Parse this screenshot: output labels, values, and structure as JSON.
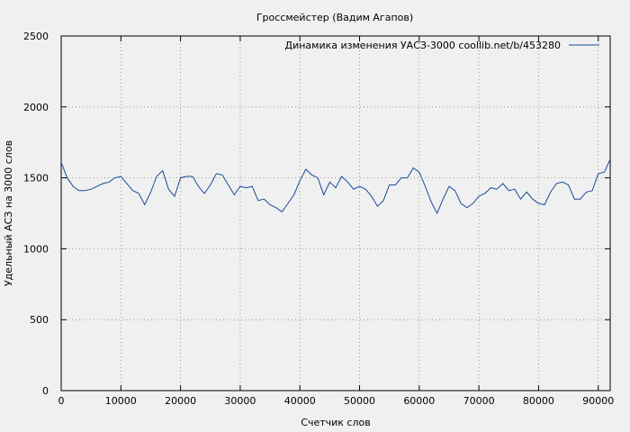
{
  "chart_data": {
    "type": "line",
    "title": "Гроссмейстер (Вадим Агапов)",
    "xlabel": "Счетчик слов",
    "ylabel": "Удельный АСЗ на 3000 слов",
    "xlim": [
      0,
      92000
    ],
    "ylim": [
      0,
      2500
    ],
    "xticks": [
      0,
      10000,
      20000,
      30000,
      40000,
      50000,
      60000,
      70000,
      80000,
      90000
    ],
    "yticks": [
      0,
      500,
      1000,
      1500,
      2000,
      2500
    ],
    "grid": true,
    "legend_position": "top-right",
    "series": [
      {
        "name": "Динамика изменения УАСЗ-3000  coollib.net/b/453280",
        "color": "#1a4a9a",
        "x": [
          0,
          1000,
          2000,
          3000,
          4000,
          5000,
          6000,
          7000,
          8000,
          9000,
          10000,
          11000,
          12000,
          13000,
          14000,
          15000,
          16000,
          17000,
          18000,
          19000,
          20000,
          21000,
          22000,
          23000,
          24000,
          25000,
          26000,
          27000,
          28000,
          29000,
          30000,
          31000,
          32000,
          33000,
          34000,
          35000,
          36000,
          37000,
          38000,
          39000,
          40000,
          41000,
          42000,
          43000,
          44000,
          45000,
          46000,
          47000,
          48000,
          49000,
          50000,
          51000,
          52000,
          53000,
          54000,
          55000,
          56000,
          57000,
          58000,
          59000,
          60000,
          61000,
          62000,
          63000,
          64000,
          65000,
          66000,
          67000,
          68000,
          69000,
          70000,
          71000,
          72000,
          73000,
          74000,
          75000,
          76000,
          77000,
          78000,
          79000,
          80000,
          81000,
          82000,
          83000,
          84000,
          85000,
          86000,
          87000,
          88000,
          89000,
          90000,
          91000,
          92000
        ],
        "y": [
          1610,
          1500,
          1440,
          1410,
          1410,
          1420,
          1440,
          1460,
          1470,
          1500,
          1510,
          1460,
          1410,
          1390,
          1310,
          1400,
          1510,
          1550,
          1420,
          1370,
          1500,
          1510,
          1510,
          1440,
          1390,
          1450,
          1530,
          1520,
          1450,
          1380,
          1440,
          1430,
          1440,
          1340,
          1350,
          1310,
          1290,
          1260,
          1320,
          1380,
          1480,
          1560,
          1520,
          1500,
          1380,
          1470,
          1430,
          1510,
          1470,
          1420,
          1440,
          1420,
          1370,
          1300,
          1340,
          1450,
          1450,
          1500,
          1500,
          1570,
          1540,
          1440,
          1330,
          1250,
          1350,
          1440,
          1410,
          1320,
          1290,
          1320,
          1370,
          1390,
          1430,
          1420,
          1460,
          1410,
          1420,
          1350,
          1400,
          1350,
          1320,
          1310,
          1400,
          1460,
          1470,
          1450,
          1350,
          1350,
          1400,
          1410,
          1530,
          1540,
          1630
        ]
      }
    ]
  }
}
